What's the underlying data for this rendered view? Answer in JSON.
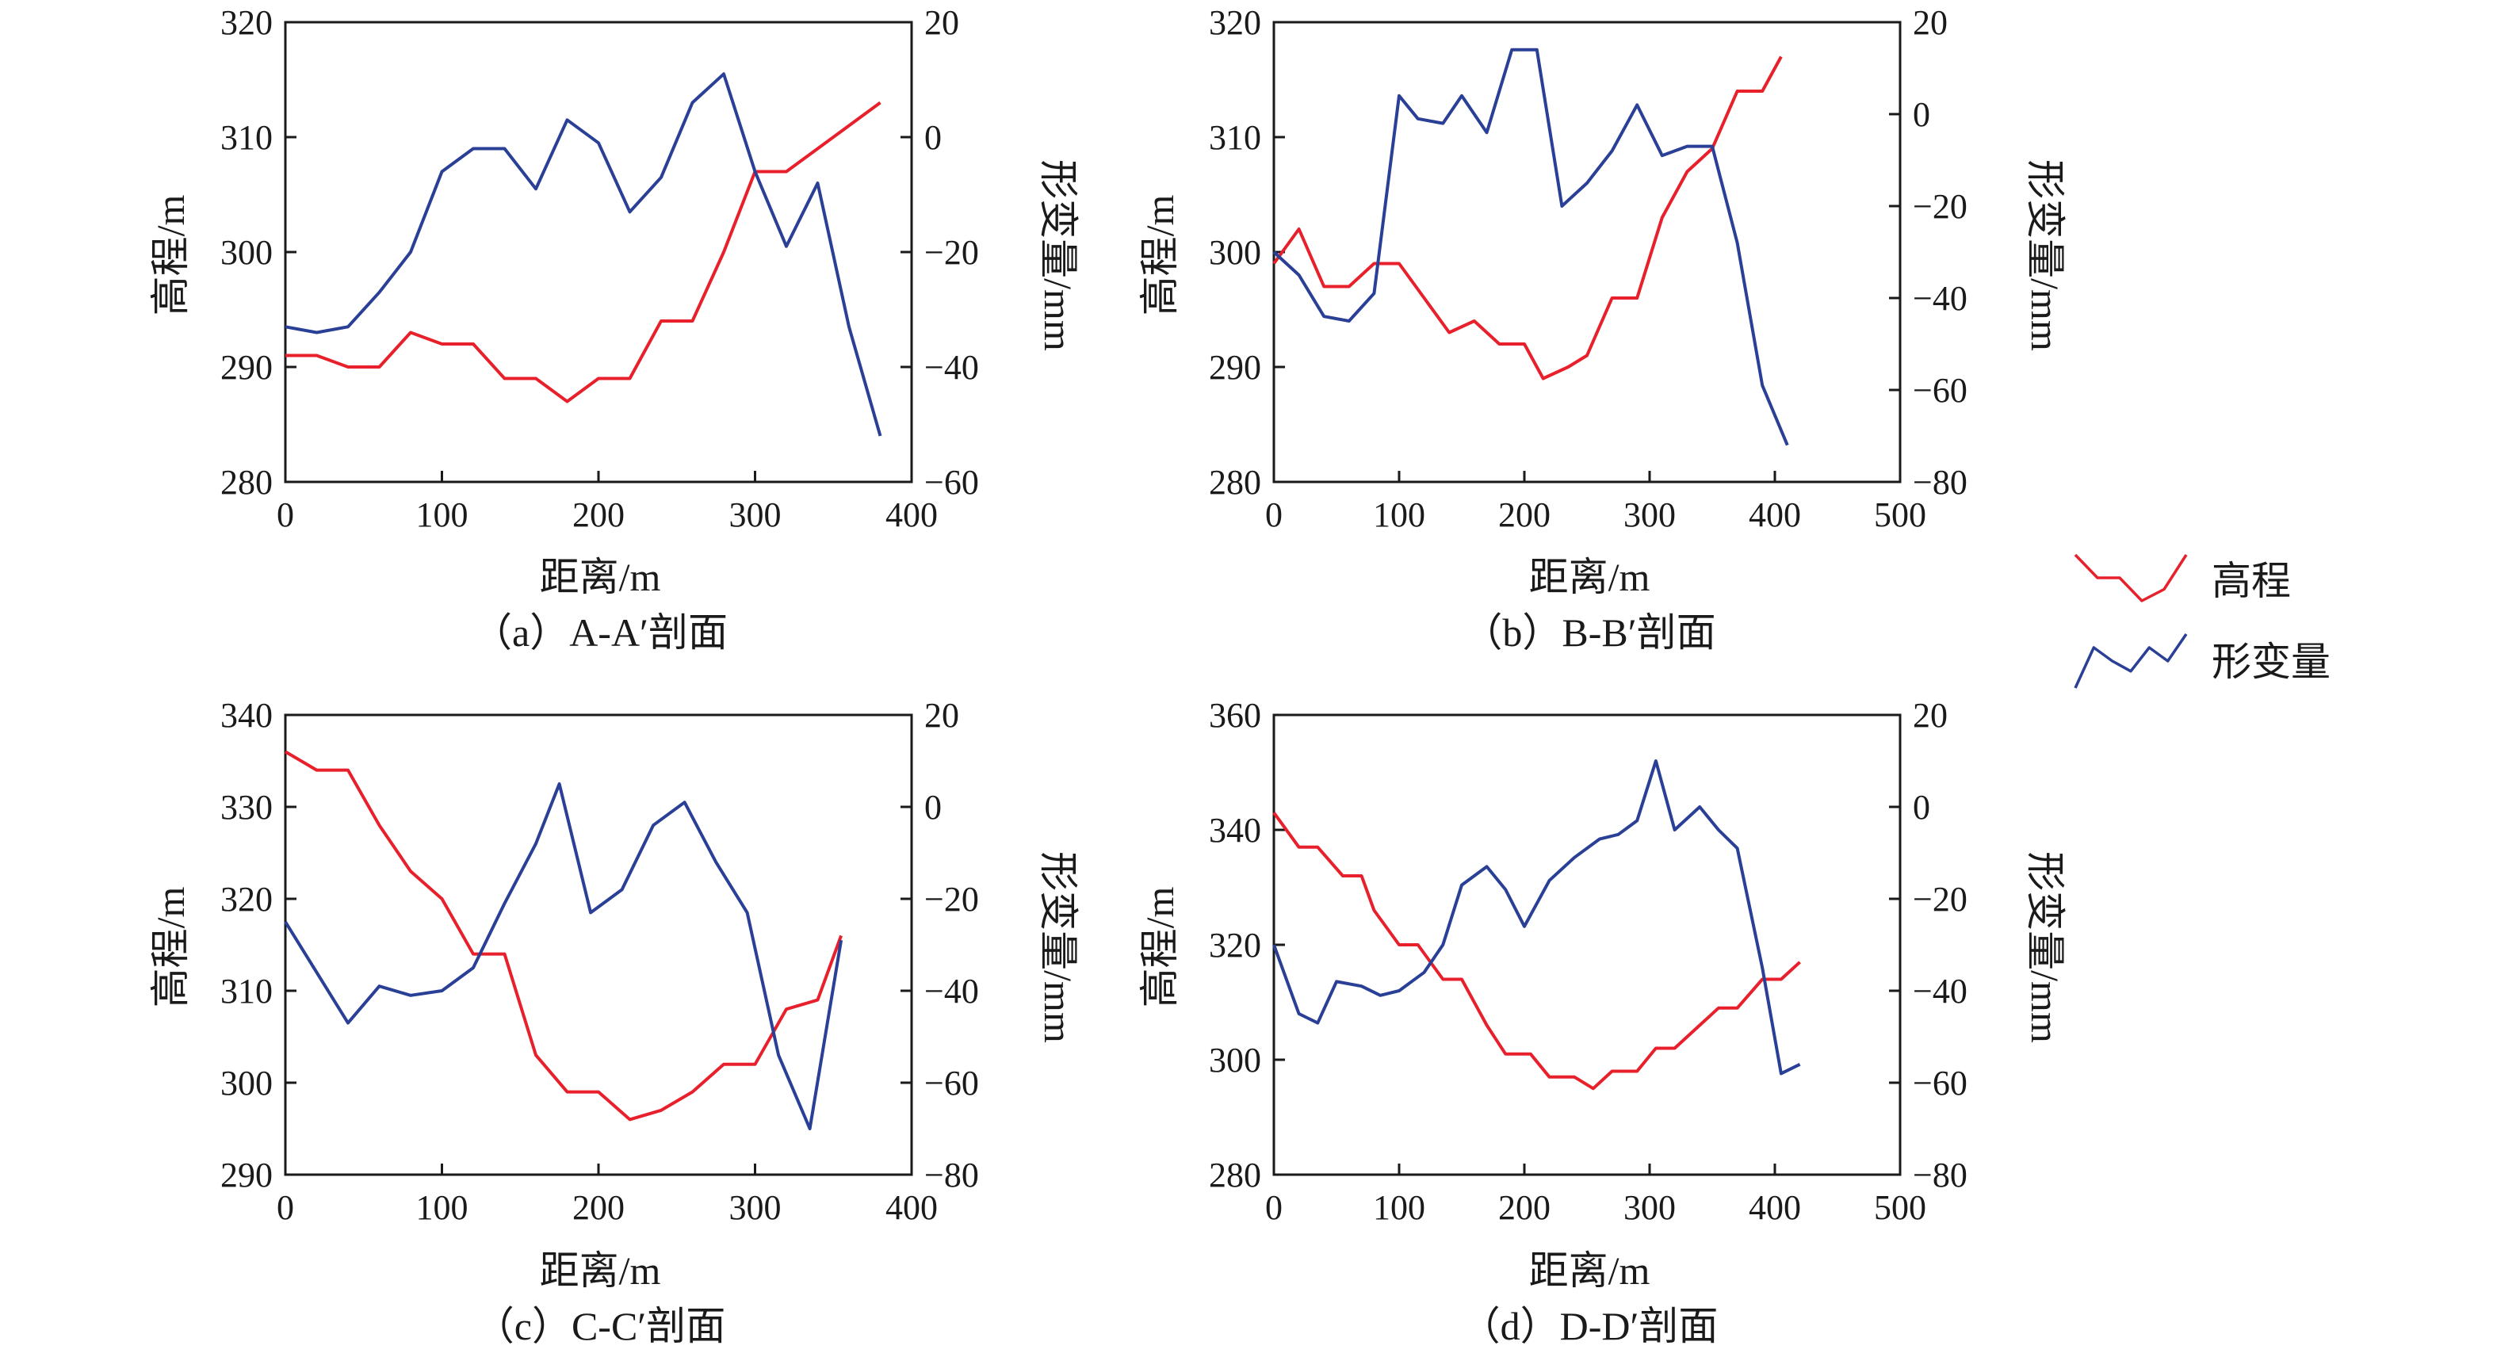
{
  "legend": {
    "items": [
      {
        "label": "高程",
        "color": "#e8202b",
        "sample_y": [
          300,
          298,
          298,
          296,
          297,
          300
        ]
      },
      {
        "label": "形变量",
        "color": "#2a3f96",
        "sample_y": [
          -42,
          -30,
          -34,
          -37,
          -30,
          -34,
          -26
        ]
      }
    ]
  },
  "chart_data": [
    {
      "type": "line",
      "caption": "（a）A-A′剖面",
      "xlabel": "距离/m",
      "ylabel_left": "高程/m",
      "ylabel_right": "形变量/mm",
      "xlim": [
        0,
        400
      ],
      "xticks": [
        0,
        100,
        200,
        300,
        400
      ],
      "ylim_left": [
        280,
        320
      ],
      "yticks_left": [
        280,
        290,
        300,
        310,
        320
      ],
      "ylim_right": [
        -60,
        20
      ],
      "yticks_right": [
        -60,
        -40,
        -20,
        0,
        20
      ],
      "series": [
        {
          "axis": "left",
          "color": "#e8202b",
          "x": [
            0,
            20,
            40,
            60,
            80,
            100,
            120,
            140,
            160,
            180,
            200,
            220,
            240,
            260,
            280,
            300,
            320,
            340,
            360,
            380
          ],
          "y": [
            291,
            291,
            290,
            290,
            293,
            292,
            292,
            289,
            289,
            287,
            289,
            289,
            294,
            294,
            300,
            307,
            307,
            309,
            311,
            313
          ]
        },
        {
          "axis": "right",
          "color": "#2a3f96",
          "x": [
            0,
            20,
            40,
            60,
            80,
            100,
            120,
            140,
            160,
            180,
            200,
            220,
            240,
            260,
            280,
            300,
            320,
            340,
            360,
            380
          ],
          "y": [
            -33,
            -34,
            -33,
            -27,
            -20,
            -6,
            -2,
            -2,
            -9,
            3,
            -1,
            -13,
            -7,
            6,
            11,
            -6,
            -19,
            -8,
            -33,
            -52
          ]
        }
      ]
    },
    {
      "type": "line",
      "caption": "（b）B-B′剖面",
      "xlabel": "距离/m",
      "ylabel_left": "高程/m",
      "ylabel_right": "形变量/mm",
      "xlim": [
        0,
        500
      ],
      "xticks": [
        0,
        100,
        200,
        300,
        400,
        500
      ],
      "ylim_left": [
        280,
        320
      ],
      "yticks_left": [
        280,
        290,
        300,
        310,
        320
      ],
      "ylim_right": [
        -80,
        20
      ],
      "yticks_right": [
        -80,
        -60,
        -40,
        -20,
        0,
        20
      ],
      "series": [
        {
          "axis": "left",
          "color": "#e8202b",
          "x": [
            0,
            20,
            40,
            60,
            80,
            100,
            120,
            140,
            160,
            180,
            200,
            215,
            235,
            250,
            270,
            290,
            310,
            330,
            350,
            370,
            390,
            405
          ],
          "y": [
            299,
            302,
            297,
            297,
            299,
            299,
            296,
            293,
            294,
            292,
            292,
            289,
            290,
            291,
            296,
            296,
            303,
            307,
            309,
            314,
            314,
            317
          ]
        },
        {
          "axis": "right",
          "color": "#2a3f96",
          "x": [
            0,
            20,
            40,
            60,
            80,
            100,
            115,
            135,
            150,
            170,
            190,
            210,
            230,
            250,
            270,
            290,
            310,
            330,
            350,
            370,
            390,
            410
          ],
          "y": [
            -30,
            -35,
            -44,
            -45,
            -39,
            4,
            -1,
            -2,
            4,
            -4,
            14,
            14,
            -20,
            -15,
            -8,
            2,
            -9,
            -7,
            -7,
            -28,
            -59,
            -72
          ]
        }
      ]
    },
    {
      "type": "line",
      "caption": "（c）C-C′剖面",
      "xlabel": "距离/m",
      "ylabel_left": "高程/m",
      "ylabel_right": "形变量/mm",
      "xlim": [
        0,
        400
      ],
      "xticks": [
        0,
        100,
        200,
        300,
        400
      ],
      "ylim_left": [
        290,
        340
      ],
      "yticks_left": [
        290,
        300,
        310,
        320,
        330,
        340
      ],
      "ylim_right": [
        -80,
        20
      ],
      "yticks_right": [
        -80,
        -60,
        -40,
        -20,
        0,
        20
      ],
      "series": [
        {
          "axis": "left",
          "color": "#e8202b",
          "x": [
            0,
            20,
            40,
            60,
            80,
            100,
            120,
            140,
            160,
            180,
            200,
            220,
            240,
            260,
            280,
            300,
            320,
            340,
            355
          ],
          "y": [
            336,
            334,
            334,
            328,
            323,
            320,
            314,
            314,
            303,
            299,
            299,
            296,
            297,
            299,
            302,
            302,
            308,
            309,
            316
          ]
        },
        {
          "axis": "right",
          "color": "#2a3f96",
          "x": [
            0,
            20,
            40,
            60,
            80,
            100,
            120,
            140,
            160,
            175,
            195,
            215,
            235,
            255,
            275,
            295,
            315,
            335,
            355
          ],
          "y": [
            -25,
            -36,
            -47,
            -39,
            -41,
            -40,
            -35,
            -21,
            -8,
            5,
            -23,
            -18,
            -4,
            1,
            -12,
            -23,
            -54,
            -70,
            -29
          ]
        }
      ]
    },
    {
      "type": "line",
      "caption": "（d）D-D′剖面",
      "xlabel": "距离/m",
      "ylabel_left": "高程/m",
      "ylabel_right": "形变量/mm",
      "xlim": [
        0,
        500
      ],
      "xticks": [
        0,
        100,
        200,
        300,
        400,
        500
      ],
      "ylim_left": [
        280,
        360
      ],
      "yticks_left": [
        280,
        300,
        320,
        340,
        360
      ],
      "ylim_right": [
        -80,
        20
      ],
      "yticks_right": [
        -80,
        -60,
        -40,
        -20,
        0,
        20
      ],
      "series": [
        {
          "axis": "left",
          "color": "#e8202b",
          "x": [
            0,
            20,
            35,
            55,
            70,
            80,
            100,
            115,
            135,
            150,
            170,
            185,
            205,
            220,
            240,
            255,
            270,
            290,
            305,
            320,
            340,
            355,
            370,
            390,
            405,
            420
          ],
          "y": [
            343,
            337,
            337,
            332,
            332,
            326,
            320,
            320,
            314,
            314,
            306,
            301,
            301,
            297,
            297,
            295,
            298,
            298,
            302,
            302,
            306,
            309,
            309,
            314,
            314,
            317
          ]
        },
        {
          "axis": "right",
          "color": "#2a3f96",
          "x": [
            0,
            20,
            35,
            50,
            70,
            85,
            100,
            120,
            135,
            150,
            170,
            185,
            200,
            220,
            240,
            260,
            275,
            290,
            305,
            320,
            340,
            355,
            370,
            390,
            405,
            420
          ],
          "y": [
            -30,
            -45,
            -47,
            -38,
            -39,
            -41,
            -40,
            -36,
            -30,
            -17,
            -13,
            -18,
            -26,
            -16,
            -11,
            -7,
            -6,
            -3,
            10,
            -5,
            0,
            -5,
            -9,
            -35,
            -58,
            -56
          ]
        }
      ]
    }
  ]
}
